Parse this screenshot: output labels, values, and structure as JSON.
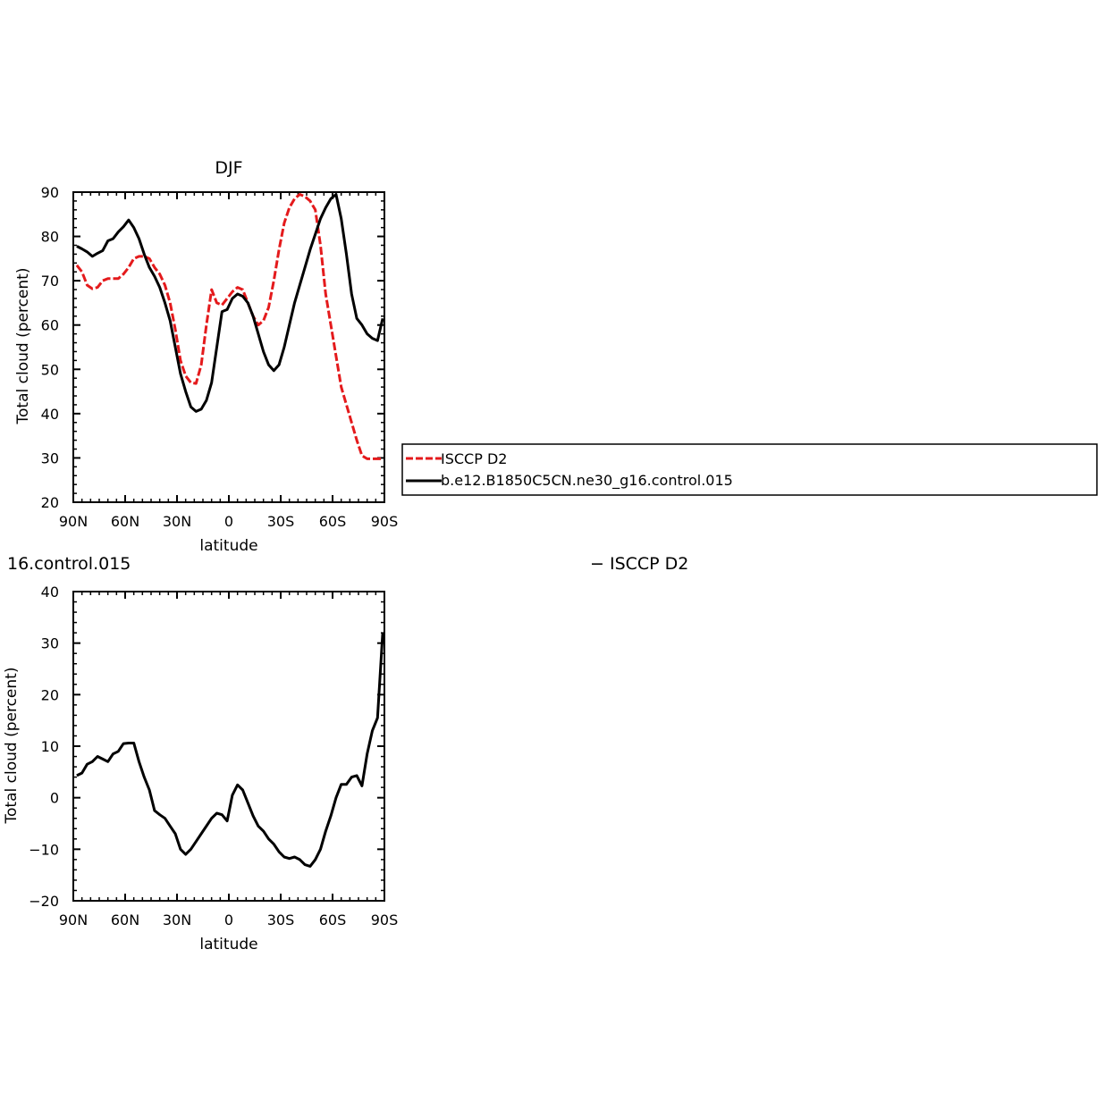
{
  "chart_data": [
    {
      "type": "line",
      "title": "DJF",
      "xlabel": "latitude",
      "ylabel": "Total cloud (percent)",
      "xlim": [
        90,
        -90
      ],
      "ylim": [
        20,
        90
      ],
      "x_tick_values": [
        90,
        60,
        30,
        0,
        -30,
        -60,
        -90
      ],
      "x_tick_labels": [
        "90N",
        "60N",
        "30N",
        "0",
        "30S",
        "60S",
        "90S"
      ],
      "y_tick_values": [
        20,
        30,
        40,
        50,
        60,
        70,
        80,
        90
      ],
      "y_tick_labels": [
        "20",
        "30",
        "40",
        "50",
        "60",
        "70",
        "80",
        "90"
      ],
      "grid": false,
      "legend_position": "right",
      "series": [
        {
          "name": "ISCCP D2",
          "color": "#e41a1c",
          "dash": "dashed",
          "x": [
            88,
            85,
            82,
            79,
            76,
            73,
            70,
            67,
            64,
            61,
            58,
            55,
            52,
            49,
            46,
            43,
            40,
            37,
            34,
            31,
            28,
            25,
            22,
            19,
            16,
            13,
            10,
            7,
            4,
            1,
            -2,
            -5,
            -8,
            -11,
            -14,
            -17,
            -20,
            -23,
            -26,
            -29,
            -32,
            -35,
            -38,
            -41,
            -44,
            -47,
            -50,
            -53,
            -56,
            -59,
            -62,
            -65,
            -68,
            -71,
            -74,
            -77,
            -80,
            -83,
            -86,
            -89
          ],
          "y": [
            73.5,
            72,
            69,
            68.2,
            68.5,
            70,
            70.5,
            70.5,
            70.5,
            71.5,
            73,
            75,
            75.5,
            75.5,
            75,
            73,
            71.5,
            69,
            65,
            59,
            52,
            48.5,
            47,
            46.8,
            51,
            60,
            68,
            65,
            64.5,
            66,
            67.5,
            68.5,
            68,
            65,
            62,
            60,
            61,
            64,
            70,
            77,
            83,
            86.5,
            88.5,
            89.5,
            89,
            88,
            86,
            78,
            67,
            60,
            53,
            46,
            42,
            38,
            34,
            30.5,
            29.8,
            29.8,
            29.8,
            29.8
          ]
        },
        {
          "name": "b.e12.B1850C5CN.ne30_g16.control.015",
          "color": "#000000",
          "dash": "solid",
          "x": [
            88,
            85,
            82,
            79,
            76,
            73,
            70,
            67,
            64,
            61,
            58,
            55,
            52,
            49,
            46,
            43,
            40,
            37,
            34,
            31,
            28,
            25,
            22,
            19,
            16,
            13,
            10,
            7,
            4,
            1,
            -2,
            -5,
            -8,
            -11,
            -14,
            -17,
            -20,
            -23,
            -26,
            -29,
            -32,
            -35,
            -38,
            -41,
            -44,
            -47,
            -50,
            -53,
            -56,
            -59,
            -62,
            -65,
            -68,
            -71,
            -74,
            -77,
            -80,
            -83,
            -86,
            -89
          ],
          "y": [
            77.8,
            77.2,
            76.5,
            75.5,
            76.2,
            76.8,
            79,
            79.5,
            81,
            82.2,
            83.7,
            82,
            79.5,
            76,
            73,
            71,
            68.5,
            65,
            61,
            55,
            49,
            45,
            41.5,
            40.5,
            41,
            43,
            47,
            55,
            63,
            63.5,
            66,
            67,
            66.5,
            65,
            62,
            58,
            54,
            51,
            49.7,
            51,
            55,
            60,
            65,
            69,
            73,
            77,
            80.5,
            84,
            86.5,
            88.5,
            89.5,
            84,
            76,
            67,
            61.5,
            60,
            58,
            57,
            56.5,
            61.5
          ]
        }
      ],
      "legend": [
        "ISCCP D2",
        "b.e12.B1850C5CN.ne30_g16.control.015"
      ]
    },
    {
      "type": "line",
      "title": "16.control.015",
      "title_right": "− ISCCP D2",
      "xlabel": "latitude",
      "ylabel": "Total cloud (percent)",
      "xlim": [
        90,
        -90
      ],
      "ylim": [
        -20,
        40
      ],
      "x_tick_values": [
        90,
        60,
        30,
        0,
        -30,
        -60,
        -90
      ],
      "x_tick_labels": [
        "90N",
        "60N",
        "30N",
        "0",
        "30S",
        "60S",
        "90S"
      ],
      "y_tick_values": [
        -20,
        -10,
        0,
        10,
        20,
        30,
        40
      ],
      "y_tick_labels": [
        "−20",
        "−10",
        "0",
        "10",
        "20",
        "30",
        "40"
      ],
      "grid": false,
      "series": [
        {
          "color": "#000000",
          "dash": "solid",
          "x": [
            88,
            85,
            82,
            79,
            76,
            73,
            70,
            67,
            64,
            61,
            58,
            55,
            52,
            49,
            46,
            43,
            40,
            37,
            34,
            31,
            28,
            25,
            22,
            19,
            16,
            13,
            10,
            7,
            4,
            1,
            -2,
            -5,
            -8,
            -11,
            -14,
            -17,
            -20,
            -23,
            -26,
            -29,
            -32,
            -35,
            -38,
            -41,
            -44,
            -47,
            -50,
            -53,
            -56,
            -59,
            -62,
            -65,
            -68,
            -71,
            -74,
            -77,
            -80,
            -83,
            -86,
            -89
          ],
          "y": [
            4.3,
            4.8,
            6.5,
            7,
            8,
            7.5,
            7,
            8.5,
            9,
            10.5,
            10.6,
            10.6,
            7,
            4,
            1.5,
            -2.5,
            -3.3,
            -4,
            -5.5,
            -7,
            -10,
            -11,
            -10,
            -8.5,
            -7,
            -5.5,
            -4,
            -3,
            -3.3,
            -4.5,
            0.5,
            2.5,
            1.5,
            -1,
            -3.5,
            -5.5,
            -6.5,
            -8,
            -9,
            -10.5,
            -11.5,
            -11.8,
            -11.5,
            -12,
            -13,
            -13.3,
            -12,
            -10,
            -6.5,
            -3.5,
            0,
            2.6,
            2.6,
            4,
            4.3,
            2.3,
            8.5,
            13,
            15.5,
            32
          ]
        }
      ]
    }
  ]
}
